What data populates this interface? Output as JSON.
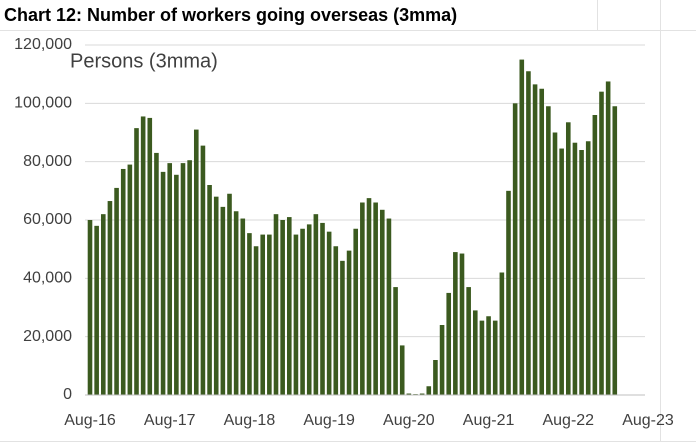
{
  "chart_data": {
    "type": "bar",
    "title": "Chart 12: Number of workers going overseas (3mma)",
    "annotation": "Persons (3mma)",
    "color": "#3b5a1f",
    "categories": [
      "Aug-16",
      null,
      null,
      null,
      null,
      null,
      null,
      null,
      null,
      null,
      null,
      null,
      "Aug-17",
      null,
      null,
      null,
      null,
      null,
      null,
      null,
      null,
      null,
      null,
      null,
      "Aug-18",
      null,
      null,
      null,
      null,
      null,
      null,
      null,
      null,
      null,
      null,
      null,
      "Aug-19",
      null,
      null,
      null,
      null,
      null,
      null,
      null,
      null,
      null,
      null,
      null,
      "Aug-20",
      null,
      null,
      null,
      null,
      null,
      null,
      null,
      null,
      null,
      null,
      null,
      "Aug-21",
      null,
      null,
      null,
      null,
      null,
      null,
      null,
      null,
      null,
      null,
      null,
      "Aug-22",
      null,
      null,
      null,
      null,
      null,
      null,
      null,
      null,
      null,
      null,
      null,
      "Aug-23"
    ],
    "values": [
      60000,
      58000,
      62000,
      66500,
      71000,
      77500,
      79000,
      91500,
      95500,
      95000,
      83000,
      76500,
      79500,
      75500,
      79500,
      80500,
      91000,
      85500,
      72000,
      68000,
      64500,
      69000,
      63000,
      60500,
      55500,
      51000,
      55000,
      55000,
      62000,
      60000,
      61000,
      55000,
      57000,
      58500,
      62000,
      59000,
      56000,
      51000,
      46000,
      49500,
      57000,
      66000,
      67500,
      66000,
      63500,
      60500,
      37000,
      17000,
      500,
      300,
      500,
      3000,
      12000,
      24000,
      35000,
      49000,
      48500,
      37000,
      29000,
      25500,
      27000,
      25500,
      42000,
      70000,
      100000,
      115000,
      111000,
      106500,
      105000,
      99000,
      90000,
      84500,
      93500,
      86500,
      84000,
      87000,
      96000,
      104000,
      107500,
      99000,
      null,
      null,
      null,
      null,
      null
    ],
    "ylim": [
      0,
      120000
    ],
    "yticks": [
      0,
      {
        "value": 20000,
        "label": "20,000"
      },
      {
        "value": 40000,
        "label": "40,000"
      },
      {
        "value": 60000,
        "label": "60,000"
      },
      {
        "value": 80000,
        "label": "80,000"
      },
      {
        "value": 100000,
        "label": "100,000"
      },
      {
        "value": 120000,
        "label": "120,000"
      }
    ],
    "grid": true
  }
}
